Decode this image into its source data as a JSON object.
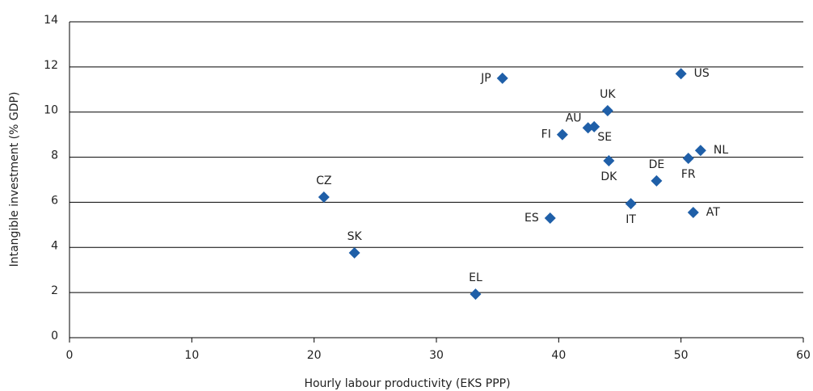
{
  "chart_data": {
    "type": "scatter",
    "xlabel": "Hourly labour productivity (EKS PPP)",
    "ylabel": "Intangible investment (% GDP)",
    "labels": [
      "JP",
      "US",
      "UK",
      "AU",
      "SE",
      "FI",
      "NL",
      "FR",
      "DK",
      "DE",
      "IT",
      "AT",
      "ES",
      "CZ",
      "SK",
      "EL"
    ],
    "x": [
      35.4,
      50.0,
      44.0,
      42.4,
      42.9,
      40.3,
      51.6,
      50.6,
      44.1,
      48.0,
      45.9,
      51.0,
      39.3,
      20.8,
      23.3,
      33.2
    ],
    "y": [
      11.5,
      11.7,
      10.06,
      9.3,
      9.35,
      9.0,
      8.3,
      7.95,
      7.84,
      6.95,
      5.94,
      5.55,
      5.3,
      6.23,
      3.76,
      1.93
    ],
    "color": "#1f5fa8",
    "xlim": [
      0,
      60
    ],
    "xticks": [
      0,
      10,
      20,
      30,
      40,
      50,
      60
    ],
    "ylim": [
      0,
      14
    ],
    "yticks": [
      0,
      2,
      4,
      6,
      8,
      10,
      12,
      14
    ],
    "grid": true
  }
}
